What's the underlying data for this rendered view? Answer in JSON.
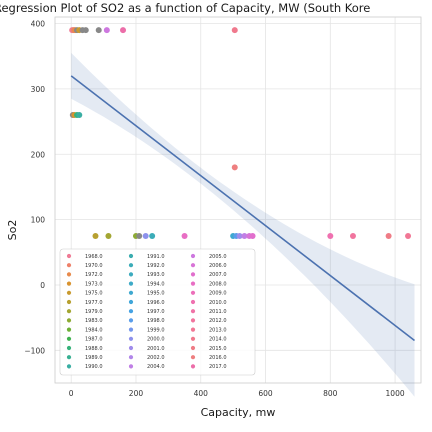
{
  "chart_data": {
    "type": "scatter",
    "title": "Regression Plot of SO2 as a function of Capacity, MW (South Kore",
    "xlabel": "Capacity, mw",
    "ylabel": "So2",
    "xlim": [
      -50,
      1080
    ],
    "ylim": [
      -150,
      410
    ],
    "x_ticks": [
      0,
      200,
      400,
      600,
      800,
      1000
    ],
    "y_ticks": [
      -100,
      0,
      100,
      200,
      300,
      400
    ],
    "grid": true,
    "legend_position": "lower-left",
    "regression_line": {
      "x": [
        0,
        1060
      ],
      "y": [
        320,
        -85
      ]
    },
    "points": [
      {
        "x": 3,
        "y": 390,
        "year": "1968.0"
      },
      {
        "x": 8,
        "y": 390,
        "year": "1970.0"
      },
      {
        "x": 12,
        "y": 390,
        "year": "1972.0"
      },
      {
        "x": 18,
        "y": 390,
        "year": "1974.0"
      },
      {
        "x": 25,
        "y": 390,
        "year": "1975.0"
      },
      {
        "x": 35,
        "y": 390,
        "year": "1978.0"
      },
      {
        "x": 45,
        "y": 390,
        "year": "1980.0"
      },
      {
        "x": 85,
        "y": 390,
        "year": "2003.0"
      },
      {
        "x": 110,
        "y": 390,
        "year": "2005.0"
      },
      {
        "x": 160,
        "y": 390,
        "year": "2017.0"
      },
      {
        "x": 505,
        "y": 390,
        "year": "2014.0"
      },
      {
        "x": 5,
        "y": 260,
        "year": "1971.0"
      },
      {
        "x": 10,
        "y": 260,
        "year": "1973.0"
      },
      {
        "x": 18,
        "y": 260,
        "year": "1988.0"
      },
      {
        "x": 25,
        "y": 260,
        "year": "1990.0"
      },
      {
        "x": 505,
        "y": 180,
        "year": "2016.0"
      },
      {
        "x": 75,
        "y": 75,
        "year": "1977.0"
      },
      {
        "x": 115,
        "y": 75,
        "year": "1979.0"
      },
      {
        "x": 200,
        "y": 75,
        "year": "1983.0"
      },
      {
        "x": 210,
        "y": 75,
        "year": "1985.0"
      },
      {
        "x": 230,
        "y": 75,
        "year": "2000.0"
      },
      {
        "x": 250,
        "y": 75,
        "year": "1992.0"
      },
      {
        "x": 350,
        "y": 75,
        "year": "2008.0"
      },
      {
        "x": 500,
        "y": 75,
        "year": "1995.0"
      },
      {
        "x": 510,
        "y": 75,
        "year": "1998.0"
      },
      {
        "x": 520,
        "y": 75,
        "year": "2001.0"
      },
      {
        "x": 535,
        "y": 75,
        "year": "2004.0"
      },
      {
        "x": 550,
        "y": 75,
        "year": "2006.0"
      },
      {
        "x": 560,
        "y": 75,
        "year": "2007.0"
      },
      {
        "x": 800,
        "y": 75,
        "year": "2010.0"
      },
      {
        "x": 870,
        "y": 75,
        "year": "2012.0"
      },
      {
        "x": 980,
        "y": 75,
        "year": "2015.0"
      },
      {
        "x": 1040,
        "y": 75,
        "year": "2013.0"
      }
    ],
    "legend": [
      {
        "label": "1968.0",
        "color": "#ef7b96"
      },
      {
        "label": "1970.0",
        "color": "#ee8069"
      },
      {
        "label": "1972.0",
        "color": "#e88a4c"
      },
      {
        "label": "1973.0",
        "color": "#d9932f"
      },
      {
        "label": "1975.0",
        "color": "#c99a2e"
      },
      {
        "label": "1977.0",
        "color": "#b7a030"
      },
      {
        "label": "1979.0",
        "color": "#a3a632"
      },
      {
        "label": "1983.0",
        "color": "#8dab34"
      },
      {
        "label": "1984.0",
        "color": "#6eb036"
      },
      {
        "label": "1987.0",
        "color": "#3eb24f"
      },
      {
        "label": "1988.0",
        "color": "#37b27a"
      },
      {
        "label": "1989.0",
        "color": "#38b092"
      },
      {
        "label": "1990.0",
        "color": "#39aea3"
      },
      {
        "label": "1991.0",
        "color": "#3aacaf"
      },
      {
        "label": "1992.0",
        "color": "#3bacb8"
      },
      {
        "label": "1993.0",
        "color": "#3cabbf"
      },
      {
        "label": "1994.0",
        "color": "#3daac7"
      },
      {
        "label": "1995.0",
        "color": "#3ea8cf"
      },
      {
        "label": "1996.0",
        "color": "#40a6d9"
      },
      {
        "label": "1997.0",
        "color": "#45a2e3"
      },
      {
        "label": "1998.0",
        "color": "#599dea"
      },
      {
        "label": "1999.0",
        "color": "#7497ec"
      },
      {
        "label": "2000.0",
        "color": "#8d91ec"
      },
      {
        "label": "2001.0",
        "color": "#a08ceb"
      },
      {
        "label": "2002.0",
        "color": "#b186e9"
      },
      {
        "label": "2004.0",
        "color": "#c07fe5"
      },
      {
        "label": "2005.0",
        "color": "#cd78df"
      },
      {
        "label": "2006.0",
        "color": "#d874d7"
      },
      {
        "label": "2007.0",
        "color": "#e16fcd"
      },
      {
        "label": "2008.0",
        "color": "#e86ec4"
      },
      {
        "label": "2009.0",
        "color": "#ec6fba"
      },
      {
        "label": "2010.0",
        "color": "#ef71b0"
      },
      {
        "label": "2011.0",
        "color": "#f073a7"
      },
      {
        "label": "2012.0",
        "color": "#f1759e"
      },
      {
        "label": "2013.0",
        "color": "#f17795"
      },
      {
        "label": "2014.0",
        "color": "#f0798d"
      },
      {
        "label": "2015.0",
        "color": "#ef7c86"
      },
      {
        "label": "2016.0",
        "color": "#ee7f80"
      },
      {
        "label": "2017.0",
        "color": "#ec6ea9"
      }
    ],
    "colors": {
      "regression_line": "#4c72b0",
      "confidence_band": "#4c72b0",
      "grid": "#e4e4e4",
      "axes_border": "#cccccc"
    }
  }
}
